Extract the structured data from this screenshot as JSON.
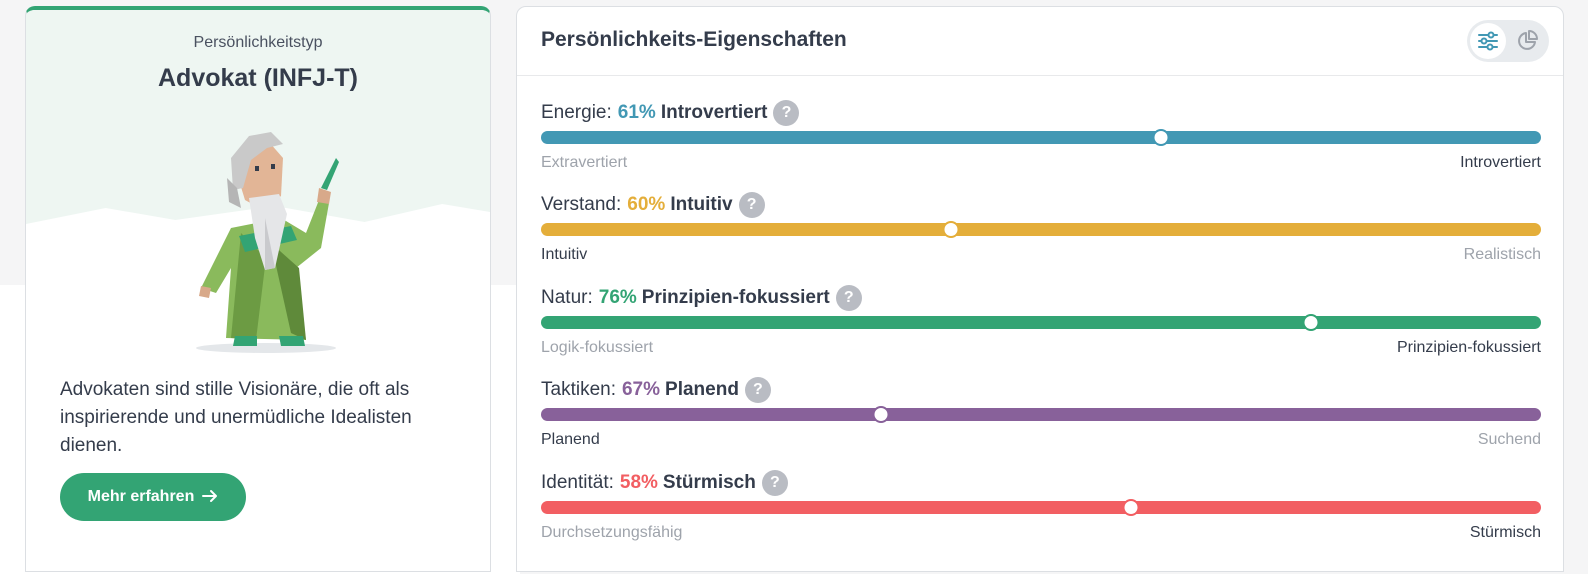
{
  "colors": {
    "green": "#33a474",
    "mint": "#eef6f2",
    "energy": "#4298b4",
    "mind": "#e4ae3a",
    "nature": "#33a474",
    "tactics": "#88619a",
    "identity": "#f25e62"
  },
  "type_card": {
    "label": "Persönlichkeitstyp",
    "name": "Advokat (INFJ-T)",
    "avatar_icon": "advocate-character-illustration",
    "description": "Advokaten sind stille Visionäre, die oft als inspirierende und unermüdliche Idealisten dienen.",
    "button_label": "Mehr erfahren",
    "button_icon": "arrow-right-icon"
  },
  "traits_card": {
    "title": "Persönlichkeits-Eigenschaften",
    "view_toggle": {
      "active": "sliders-icon",
      "inactive": "pie-chart-icon"
    },
    "help_glyph": "?",
    "traits": [
      {
        "category": "Energie:",
        "percent": "61%",
        "trait": "Introvertiert",
        "left_pole": "Extravertiert",
        "right_pole": "Introvertiert",
        "position": 0.62,
        "active_side": "right",
        "color": "#4298b4"
      },
      {
        "category": "Verstand:",
        "percent": "60%",
        "trait": "Intuitiv",
        "left_pole": "Intuitiv",
        "right_pole": "Realistisch",
        "position": 0.41,
        "active_side": "left",
        "color": "#e4ae3a"
      },
      {
        "category": "Natur:",
        "percent": "76%",
        "trait": "Prinzipien-fokussiert",
        "left_pole": "Logik-fokussiert",
        "right_pole": "Prinzipien-fokussiert",
        "position": 0.77,
        "active_side": "right",
        "color": "#33a474"
      },
      {
        "category": "Taktiken:",
        "percent": "67%",
        "trait": "Planend",
        "left_pole": "Planend",
        "right_pole": "Suchend",
        "position": 0.34,
        "active_side": "left",
        "color": "#88619a"
      },
      {
        "category": "Identität:",
        "percent": "58%",
        "trait": "Stürmisch",
        "left_pole": "Durchsetzungsfähig",
        "right_pole": "Stürmisch",
        "position": 0.59,
        "active_side": "right",
        "color": "#f25e62"
      }
    ]
  }
}
